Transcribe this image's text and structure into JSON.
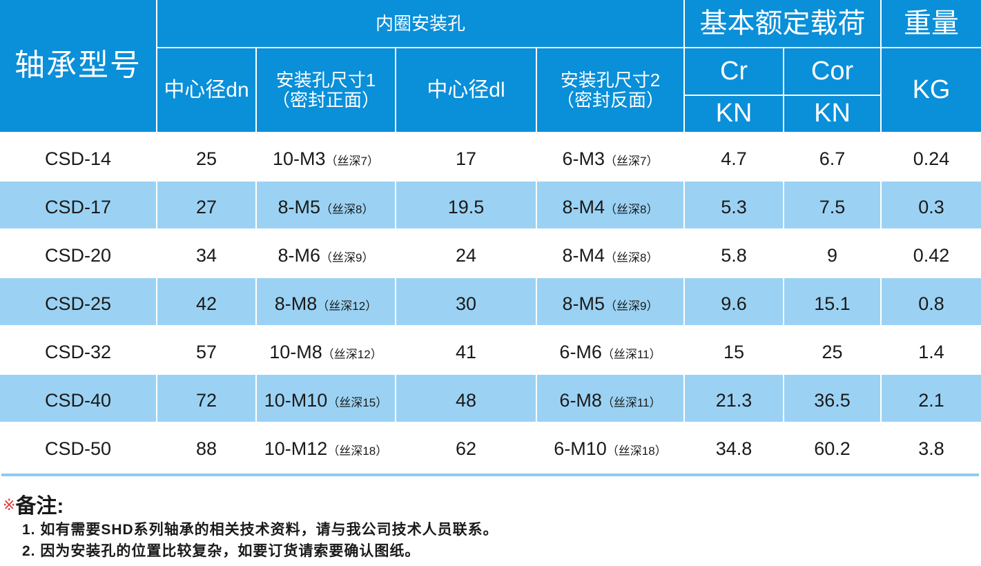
{
  "header": {
    "model": "轴承型号",
    "inner_group": "内圈安装孔",
    "load_group": "基本额定载荷",
    "weight_group": "重量",
    "dn": "中心径dn",
    "hole1_line1": "安装孔尺寸1",
    "hole1_line2": "（密封正面）",
    "dl": "中心径dl",
    "hole2_line1": "安装孔尺寸2",
    "hole2_line2": "（密封反面）",
    "cr": "Cr",
    "cor": "Cor",
    "cr_unit": "KN",
    "cor_unit": "KN",
    "weight_unit": "KG"
  },
  "rows": [
    {
      "model": "CSD-14",
      "dn": "25",
      "hole1": "10-M3",
      "hole1_note": "（丝深7）",
      "dl": "17",
      "hole2": "6-M3",
      "hole2_note": "（丝深7）",
      "cr": "4.7",
      "cor": "6.7",
      "kg": "0.24"
    },
    {
      "model": "CSD-17",
      "dn": "27",
      "hole1": "8-M5",
      "hole1_note": "（丝深8）",
      "dl": "19.5",
      "hole2": "8-M4",
      "hole2_note": "（丝深8）",
      "cr": "5.3",
      "cor": "7.5",
      "kg": "0.3"
    },
    {
      "model": "CSD-20",
      "dn": "34",
      "hole1": "8-M6",
      "hole1_note": "（丝深9）",
      "dl": "24",
      "hole2": "8-M4",
      "hole2_note": "（丝深8）",
      "cr": "5.8",
      "cor": "9",
      "kg": "0.42"
    },
    {
      "model": "CSD-25",
      "dn": "42",
      "hole1": "8-M8",
      "hole1_note": "（丝深12）",
      "dl": "30",
      "hole2": "8-M5",
      "hole2_note": "（丝深9）",
      "cr": "9.6",
      "cor": "15.1",
      "kg": "0.8"
    },
    {
      "model": "CSD-32",
      "dn": "57",
      "hole1": "10-M8",
      "hole1_note": "（丝深12）",
      "dl": "41",
      "hole2": "6-M6",
      "hole2_note": "（丝深11）",
      "cr": "15",
      "cor": "25",
      "kg": "1.4"
    },
    {
      "model": "CSD-40",
      "dn": "72",
      "hole1": "10-M10",
      "hole1_note": "（丝深15）",
      "dl": "48",
      "hole2": "6-M8",
      "hole2_note": "（丝深11）",
      "cr": "21.3",
      "cor": "36.5",
      "kg": "2.1"
    },
    {
      "model": "CSD-50",
      "dn": "88",
      "hole1": "10-M12",
      "hole1_note": "（丝深18）",
      "dl": "62",
      "hole2": "6-M10",
      "hole2_note": "（丝深18）",
      "cr": "34.8",
      "cor": "60.2",
      "kg": "3.8"
    }
  ],
  "remarks": {
    "mark": "※",
    "title": "备注:",
    "lines": [
      "1. 如有需要SHD系列轴承的相关技术资料，请与我公司技术人员联系。",
      "2. 因为安装孔的位置比较复杂，如要订货请索要确认图纸。"
    ]
  },
  "colors": {
    "header_blue": "#0a8fd9",
    "row_alt_blue": "#9bd2f3",
    "remark_mark": "#e23a3a"
  }
}
